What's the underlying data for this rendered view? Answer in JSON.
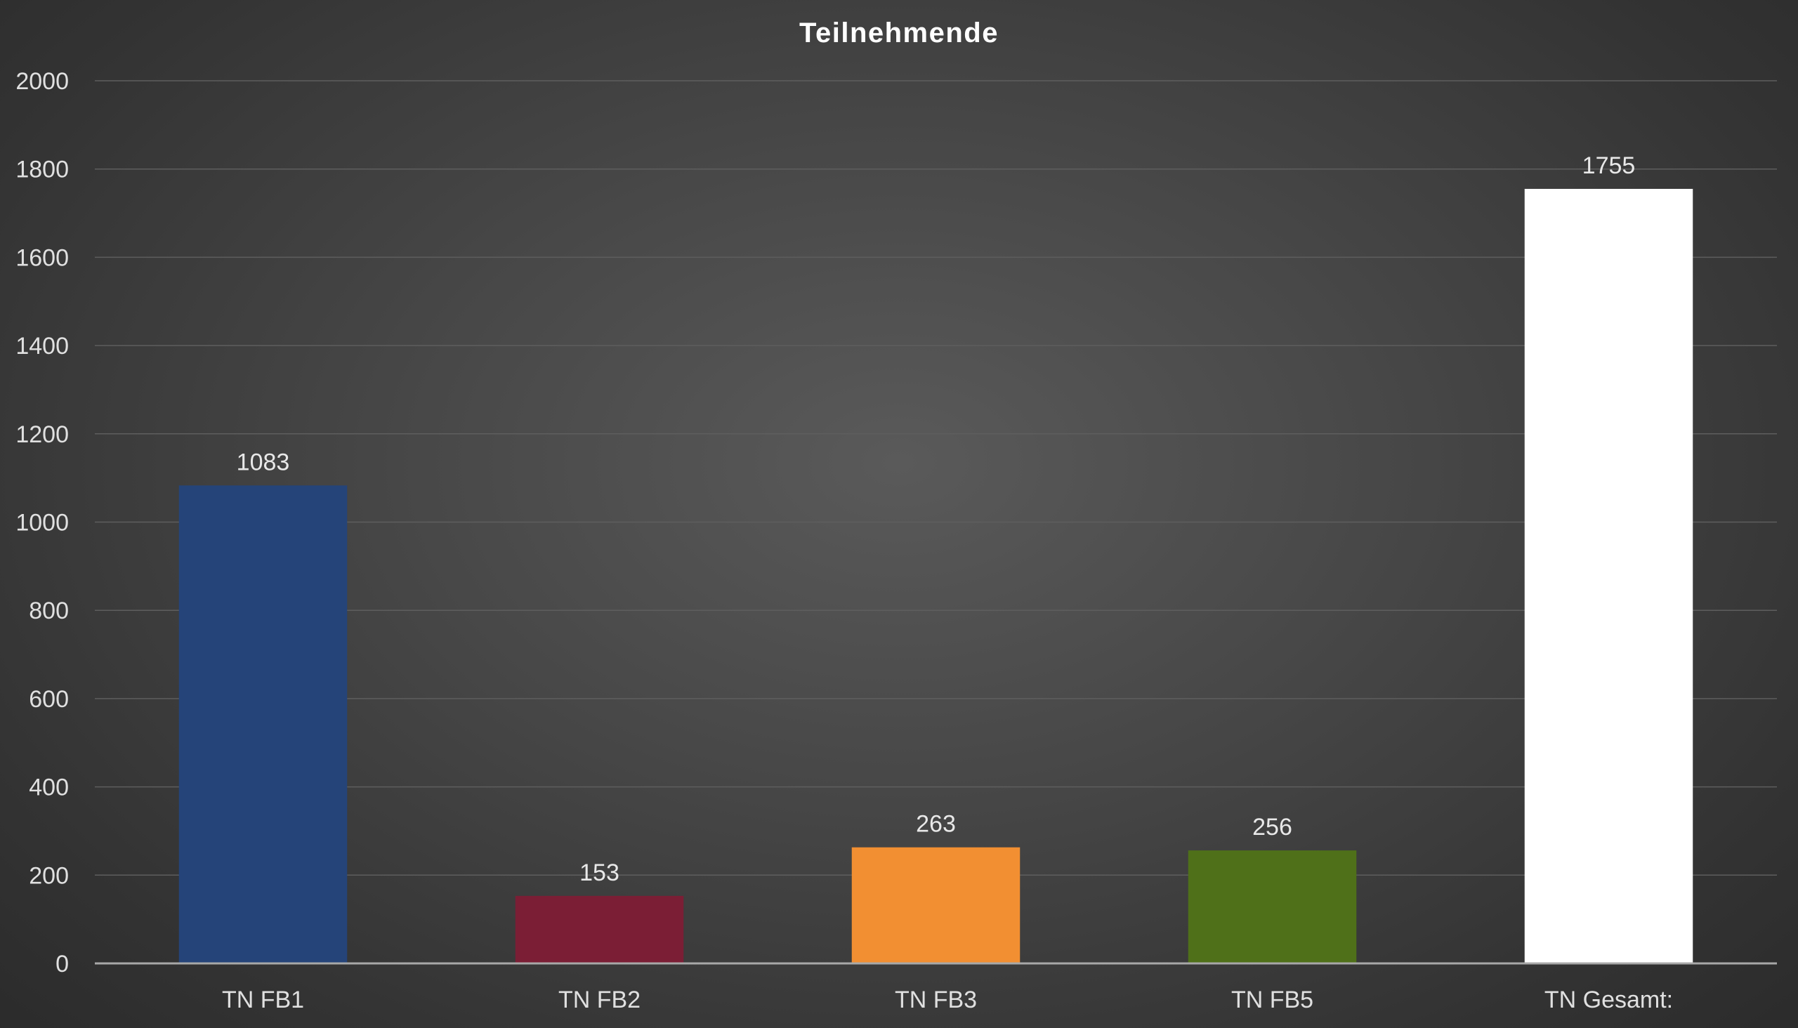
{
  "chart_data": {
    "type": "bar",
    "title": "Teilnehmende",
    "xlabel": "",
    "ylabel": "",
    "categories": [
      "TN FB1",
      "TN FB2",
      "TN FB3",
      "TN FB5",
      "TN Gesamt:"
    ],
    "values": [
      1083,
      153,
      263,
      256,
      1755
    ],
    "colors": [
      "#254479",
      "#7b1e35",
      "#f28f32",
      "#4f7019",
      "#ffffff"
    ],
    "ylim": [
      0,
      2000
    ],
    "yticks": [
      0,
      200,
      400,
      600,
      800,
      1000,
      1200,
      1400,
      1600,
      1800,
      2000
    ],
    "grid": true,
    "data_labels": true,
    "legend": "none"
  },
  "colors": {
    "background": "#3a3a3a",
    "text": "#e0e0e0",
    "gridline": "#5e5e5e"
  }
}
